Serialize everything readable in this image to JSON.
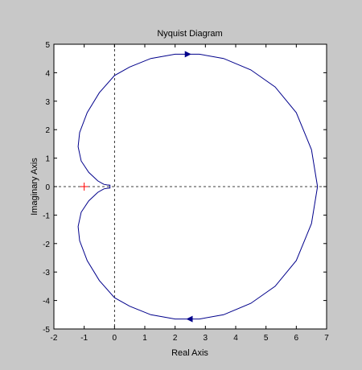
{
  "chart_data": {
    "type": "line",
    "title": "Nyquist Diagram",
    "xlabel": "Real Axis",
    "ylabel": "Imaginary Axis",
    "xlim": [
      -2,
      7
    ],
    "ylim": [
      -5,
      5
    ],
    "xticks": [
      -2,
      -1,
      0,
      1,
      2,
      3,
      4,
      5,
      6,
      7
    ],
    "yticks": [
      -5,
      -4,
      -3,
      -2,
      -1,
      0,
      1,
      2,
      3,
      4,
      5
    ],
    "grid": false,
    "crosshair_lines": {
      "x": 0,
      "y": 0,
      "style": "dashed"
    },
    "critical_point": {
      "x": -1,
      "y": 0,
      "marker": "+",
      "color": "#ff0000"
    },
    "series": [
      {
        "color": "#00008b",
        "x": [
          6.7,
          6.5,
          6.0,
          5.3,
          4.5,
          3.6,
          2.8,
          2.0,
          1.2,
          0.5,
          0.0,
          -0.5,
          -0.9,
          -1.15,
          -1.2,
          -1.1,
          -0.85,
          -0.55,
          -0.35,
          -0.25,
          -0.15
        ],
        "y": [
          0.0,
          1.3,
          2.6,
          3.5,
          4.1,
          4.5,
          4.65,
          4.65,
          4.5,
          4.2,
          3.9,
          3.3,
          2.6,
          1.9,
          1.4,
          0.9,
          0.5,
          0.2,
          0.08,
          0.06,
          0.05
        ]
      }
    ],
    "direction_arrows": [
      {
        "x": 2.4,
        "y": 4.65,
        "dir": "right"
      },
      {
        "x": 2.5,
        "y": -4.65,
        "dir": "left"
      }
    ]
  }
}
